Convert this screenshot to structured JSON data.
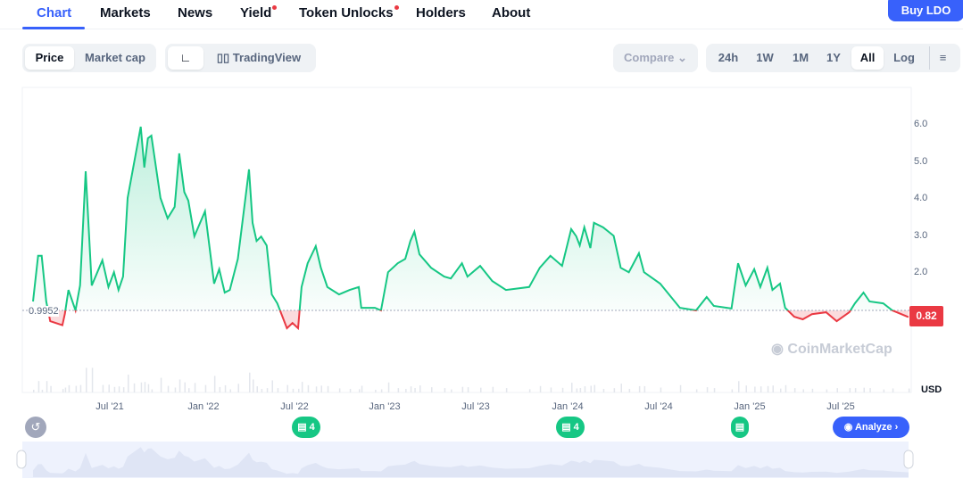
{
  "tabs": [
    {
      "label": "Chart",
      "active": true
    },
    {
      "label": "Markets"
    },
    {
      "label": "News"
    },
    {
      "label": "Yield",
      "dot": true
    },
    {
      "label": "Token Unlocks",
      "dot": true
    },
    {
      "label": "Holders"
    },
    {
      "label": "About"
    }
  ],
  "buy_label": "Buy LDO",
  "toolbar": {
    "price": "Price",
    "market_cap": "Market cap",
    "tradingview": "TradingView",
    "compare": "Compare",
    "ranges": [
      "24h",
      "1W",
      "1M",
      "1Y",
      "All"
    ],
    "selected_range": "All",
    "log": "Log"
  },
  "colors": {
    "accent": "#3861fb",
    "up": "#16c784",
    "down": "#ea3943"
  },
  "chart_data": {
    "type": "area",
    "ylabel": "USD",
    "yticks": [
      "6.0",
      "5.0",
      "4.0",
      "3.0",
      "2.0"
    ],
    "ylim": [
      0,
      7
    ],
    "xticks": [
      "Jul '21",
      "Jan '22",
      "Jul '22",
      "Jan '23",
      "Jul '23",
      "Jan '24",
      "Jul '24",
      "Jan '25",
      "Jul '25"
    ],
    "reference_value": "0.9952",
    "current_value": "0.82",
    "series": [
      [
        "2021-01-24",
        1.24
      ],
      [
        "2021-02-04",
        2.47
      ],
      [
        "2021-02-11",
        2.47
      ],
      [
        "2021-02-20",
        1.24
      ],
      [
        "2021-02-28",
        0.71
      ],
      [
        "2021-03-22",
        0.6
      ],
      [
        "2021-03-27",
        0.91
      ],
      [
        "2021-04-04",
        1.55
      ],
      [
        "2021-04-18",
        1.0
      ],
      [
        "2021-04-27",
        1.67
      ],
      [
        "2021-05-08",
        4.75
      ],
      [
        "2021-05-20",
        1.67
      ],
      [
        "2021-06-11",
        2.35
      ],
      [
        "2021-06-23",
        1.63
      ],
      [
        "2021-07-04",
        2.03
      ],
      [
        "2021-07-13",
        1.55
      ],
      [
        "2021-07-22",
        1.91
      ],
      [
        "2021-08-01",
        4.03
      ],
      [
        "2021-08-13",
        4.92
      ],
      [
        "2021-08-27",
        5.95
      ],
      [
        "2021-09-04",
        4.85
      ],
      [
        "2021-09-11",
        5.64
      ],
      [
        "2021-09-18",
        5.71
      ],
      [
        "2021-10-06",
        4.03
      ],
      [
        "2021-10-20",
        3.48
      ],
      [
        "2021-11-04",
        3.79
      ],
      [
        "2021-11-13",
        5.23
      ],
      [
        "2021-11-23",
        4.19
      ],
      [
        "2021-12-01",
        3.96
      ],
      [
        "2021-12-13",
        3.0
      ],
      [
        "2022-01-04",
        3.67
      ],
      [
        "2022-01-22",
        1.72
      ],
      [
        "2022-02-02",
        2.11
      ],
      [
        "2022-02-13",
        1.48
      ],
      [
        "2022-02-23",
        1.55
      ],
      [
        "2022-03-09",
        2.39
      ],
      [
        "2022-04-01",
        4.8
      ],
      [
        "2022-04-08",
        3.36
      ],
      [
        "2022-04-16",
        2.87
      ],
      [
        "2022-04-25",
        2.99
      ],
      [
        "2022-05-06",
        2.75
      ],
      [
        "2022-05-16",
        1.43
      ],
      [
        "2022-05-27",
        1.19
      ],
      [
        "2022-06-16",
        0.52
      ],
      [
        "2022-06-27",
        0.66
      ],
      [
        "2022-07-08",
        0.52
      ],
      [
        "2022-07-15",
        1.63
      ],
      [
        "2022-07-27",
        2.27
      ],
      [
        "2022-08-13",
        2.73
      ],
      [
        "2022-08-23",
        2.15
      ],
      [
        "2022-09-06",
        1.63
      ],
      [
        "2022-09-29",
        1.43
      ],
      [
        "2022-10-20",
        1.55
      ],
      [
        "2022-11-08",
        1.63
      ],
      [
        "2022-11-13",
        1.07
      ],
      [
        "2022-12-10",
        1.07
      ],
      [
        "2022-12-22",
        1.0
      ],
      [
        "2023-01-06",
        2.03
      ],
      [
        "2023-01-25",
        2.27
      ],
      [
        "2023-02-10",
        2.39
      ],
      [
        "2023-02-20",
        2.87
      ],
      [
        "2023-02-28",
        3.12
      ],
      [
        "2023-03-08",
        2.51
      ],
      [
        "2023-04-01",
        2.15
      ],
      [
        "2023-04-27",
        1.91
      ],
      [
        "2023-05-10",
        1.86
      ],
      [
        "2023-06-02",
        2.27
      ],
      [
        "2023-06-13",
        1.91
      ],
      [
        "2023-07-08",
        2.2
      ],
      [
        "2023-08-02",
        1.79
      ],
      [
        "2023-08-29",
        1.55
      ],
      [
        "2023-10-15",
        1.63
      ],
      [
        "2023-11-06",
        2.15
      ],
      [
        "2023-11-27",
        2.47
      ],
      [
        "2023-12-20",
        2.2
      ],
      [
        "2024-01-08",
        3.19
      ],
      [
        "2024-01-18",
        3.0
      ],
      [
        "2024-01-25",
        2.75
      ],
      [
        "2024-02-04",
        3.24
      ],
      [
        "2024-02-16",
        2.68
      ],
      [
        "2024-02-23",
        3.36
      ],
      [
        "2024-03-11",
        3.24
      ],
      [
        "2024-04-02",
        3.01
      ],
      [
        "2024-04-16",
        2.15
      ],
      [
        "2024-05-02",
        2.03
      ],
      [
        "2024-05-22",
        2.54
      ],
      [
        "2024-06-02",
        2.03
      ],
      [
        "2024-07-04",
        1.72
      ],
      [
        "2024-08-13",
        1.07
      ],
      [
        "2024-09-15",
        1.0
      ],
      [
        "2024-10-06",
        1.36
      ],
      [
        "2024-10-20",
        1.12
      ],
      [
        "2024-11-25",
        1.05
      ],
      [
        "2024-12-08",
        2.27
      ],
      [
        "2024-12-23",
        1.67
      ],
      [
        "2025-01-10",
        2.11
      ],
      [
        "2025-01-22",
        1.63
      ],
      [
        "2025-02-06",
        2.15
      ],
      [
        "2025-02-16",
        1.55
      ],
      [
        "2025-03-01",
        1.72
      ],
      [
        "2025-03-11",
        1.07
      ],
      [
        "2025-03-29",
        0.83
      ],
      [
        "2025-04-16",
        0.76
      ],
      [
        "2025-05-04",
        0.9
      ],
      [
        "2025-06-02",
        0.95
      ],
      [
        "2025-06-23",
        0.71
      ],
      [
        "2025-07-18",
        0.95
      ],
      [
        "2025-07-29",
        1.19
      ],
      [
        "2025-08-16",
        1.48
      ],
      [
        "2025-08-28",
        1.24
      ],
      [
        "2025-09-25",
        1.19
      ],
      [
        "2025-10-13",
        1.0
      ],
      [
        "2025-11-15",
        0.82
      ]
    ]
  },
  "watermark": "CoinMarketCap",
  "events": [
    {
      "count": "4"
    },
    {
      "count": "4"
    },
    {
      "count": ""
    }
  ],
  "analyze_label": "Analyze"
}
